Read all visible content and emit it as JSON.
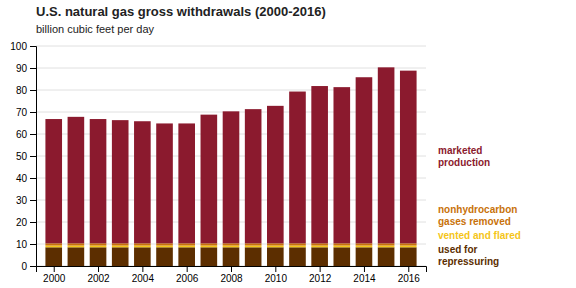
{
  "chart_data": {
    "type": "bar",
    "stacked": true,
    "title": "U.S. natural gas gross withdrawals (2000-2016)",
    "subtitle": "billion cubic feet per day",
    "x": [
      2000,
      2001,
      2002,
      2003,
      2004,
      2005,
      2006,
      2007,
      2008,
      2009,
      2010,
      2011,
      2012,
      2013,
      2014,
      2015,
      2016
    ],
    "series": [
      {
        "name": "used for\nrepressuring",
        "color": "#5C2E00",
        "values": [
          8.5,
          8.5,
          8.5,
          8.5,
          8.5,
          8.5,
          8.5,
          8.5,
          8.5,
          8.5,
          8.5,
          8.5,
          8.5,
          8.5,
          8.5,
          8.5,
          8.5
        ]
      },
      {
        "name": "vented and flared",
        "color": "#F5C518",
        "values": [
          0.8,
          0.8,
          0.8,
          0.8,
          0.8,
          0.8,
          0.8,
          0.8,
          0.8,
          0.8,
          0.8,
          0.8,
          0.8,
          0.8,
          0.8,
          0.8,
          0.8
        ]
      },
      {
        "name": "nonhydrocarbon\ngases removed",
        "color": "#C8720A",
        "values": [
          1.0,
          1.0,
          1.0,
          1.0,
          1.0,
          1.0,
          1.0,
          1.0,
          1.0,
          1.0,
          1.0,
          1.0,
          1.0,
          1.0,
          1.0,
          1.0,
          1.0
        ]
      },
      {
        "name": "marketed\nproduction",
        "color": "#8B1A2E",
        "values": [
          56.5,
          57.5,
          56.5,
          56.0,
          55.5,
          54.5,
          54.5,
          58.5,
          60.0,
          61.0,
          62.5,
          69.0,
          71.5,
          71.0,
          75.5,
          80.0,
          78.5
        ]
      }
    ],
    "xlim": [
      1999.2,
      2016.8
    ],
    "xticks": [
      2000,
      2002,
      2004,
      2006,
      2008,
      2010,
      2012,
      2014,
      2016
    ],
    "ylim": [
      0,
      100
    ],
    "yticks": [
      0,
      10,
      20,
      30,
      40,
      50,
      60,
      70,
      80,
      90,
      100
    ],
    "grid": true,
    "legend": "right"
  }
}
